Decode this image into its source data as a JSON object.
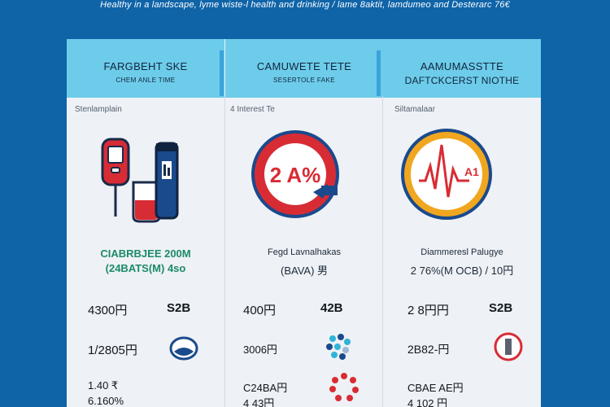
{
  "banner": {
    "caption": "Healthy in a landscape, lyme wiste-l health and drinking / lame 8aktit, lamdumeo and Desterarc 76€"
  },
  "columns": [
    {
      "title": "FARGBEHT SKE",
      "subtitle": "CHEM ANLE TIME",
      "section_label": "Stenlamplain",
      "caption_line1": "CIABRBJEE 200M",
      "caption_line2": "(24BATS(M)  4so",
      "illustration": "blood-test-tubes-icon",
      "stats": [
        {
          "left": "4300円",
          "right": "S2B"
        },
        {
          "left": "1/2805円",
          "right": ""
        },
        {
          "left": "1.40 ₹",
          "right": ""
        },
        {
          "left": "6.160%",
          "right": ""
        }
      ],
      "row_icon": "kidney-icon"
    },
    {
      "title": "CAMUWETE TETE",
      "subtitle": "SESERTOLE FAKE",
      "section_label": "4 Interest Te",
      "caption_line1": "Fegd Lavnalhakas",
      "caption_line2": "(BAVA) 男",
      "illustration": "percent-gauge-icon",
      "gauge_text": "2 A%",
      "stats": [
        {
          "left": "400円",
          "right": "42B"
        },
        {
          "left": "3006円",
          "right": ""
        },
        {
          "left": "C24BA円",
          "right": ""
        },
        {
          "left": "4 43円",
          "right": ""
        }
      ],
      "row_icon": "molecule-icon"
    },
    {
      "title": "AAMUMASSTTE",
      "subtitle": "DAFTCKCERST NIOTHE",
      "section_label": "Siltamalaar",
      "caption_line1": "Diammeresl Palugye",
      "caption_line2": "2 76%(M OCB) / 10円",
      "illustration": "heart-monitor-icon",
      "monitor_text": "A1",
      "stats": [
        {
          "left": "2 8円円",
          "right": "S2B"
        },
        {
          "left": "2B82-円",
          "right": ""
        },
        {
          "left": "CBAE AE円",
          "right": ""
        },
        {
          "left": "4 102 円",
          "right": ""
        }
      ],
      "row_icon": "lab-vial-icon"
    }
  ],
  "colors": {
    "background": "#0f64a8",
    "header": "#6dcce9",
    "accent_red": "#d82c35",
    "accent_blue": "#1a4a8c",
    "accent_orange": "#f0a71f"
  }
}
